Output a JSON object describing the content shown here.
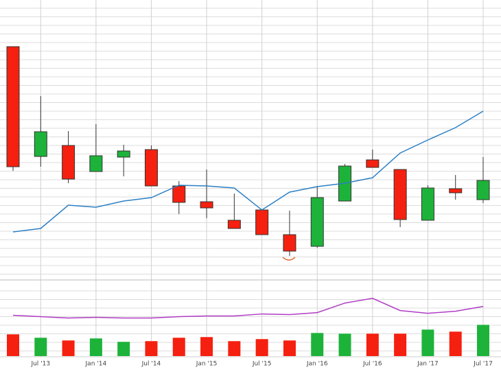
{
  "chart_data": {
    "type": "candlestick",
    "categories": [
      null,
      "Jul '13",
      null,
      "Jan '14",
      null,
      "Jul '14",
      null,
      "Jan '15",
      null,
      "Jul '15",
      null,
      "Jan '16",
      null,
      "Jul '16",
      null,
      "Jan '17",
      null,
      "Jul '17"
    ],
    "open": [
      83,
      43,
      47,
      37.5,
      42.75,
      45.5,
      32.25,
      26.5,
      19.75,
      23.5,
      14.5,
      10.25,
      26.75,
      41.75,
      38.25,
      19.75,
      31.25,
      27.25
    ],
    "close": [
      39.25,
      52,
      34.75,
      43.25,
      45,
      32.25,
      26.25,
      24.25,
      16.75,
      14.5,
      8.5,
      28,
      39.5,
      39,
      20,
      31.5,
      29.75,
      34.25
    ],
    "high": [
      83,
      65,
      52.25,
      54.75,
      47.25,
      47,
      34,
      38.25,
      29.5,
      23.5,
      23.25,
      32.25,
      40.25,
      45.5,
      38.25,
      32.5,
      36.25,
      42.75
    ],
    "low": [
      37.75,
      39.25,
      33.25,
      37.5,
      35.75,
      32.25,
      22,
      20.5,
      16.75,
      14.5,
      6.75,
      9.75,
      26.75,
      39,
      17.25,
      19.75,
      27.25,
      26
    ],
    "up_color": "#1db33a",
    "down_color": "#f5200f",
    "ylim": [
      0,
      100
    ],
    "moving_average": {
      "color": "#2b7fc4",
      "values": [
        15.5,
        16.75,
        25.25,
        24.5,
        26.75,
        28,
        32.5,
        32.25,
        31.5,
        23.5,
        30,
        32,
        33.25,
        35.25,
        44.25,
        49,
        53.5,
        59.5
      ]
    },
    "volume": {
      "ylim": [
        0,
        110
      ],
      "values": [
        32,
        27,
        23,
        26,
        21,
        22,
        27,
        28,
        22,
        25,
        23,
        34,
        33,
        33,
        33,
        39,
        36,
        46
      ],
      "line": {
        "color": "#b03cc4",
        "values": [
          60,
          58,
          56,
          57,
          56,
          56,
          58,
          59,
          59,
          62,
          61,
          64,
          78,
          85,
          67,
          63,
          66,
          73
        ]
      }
    }
  }
}
